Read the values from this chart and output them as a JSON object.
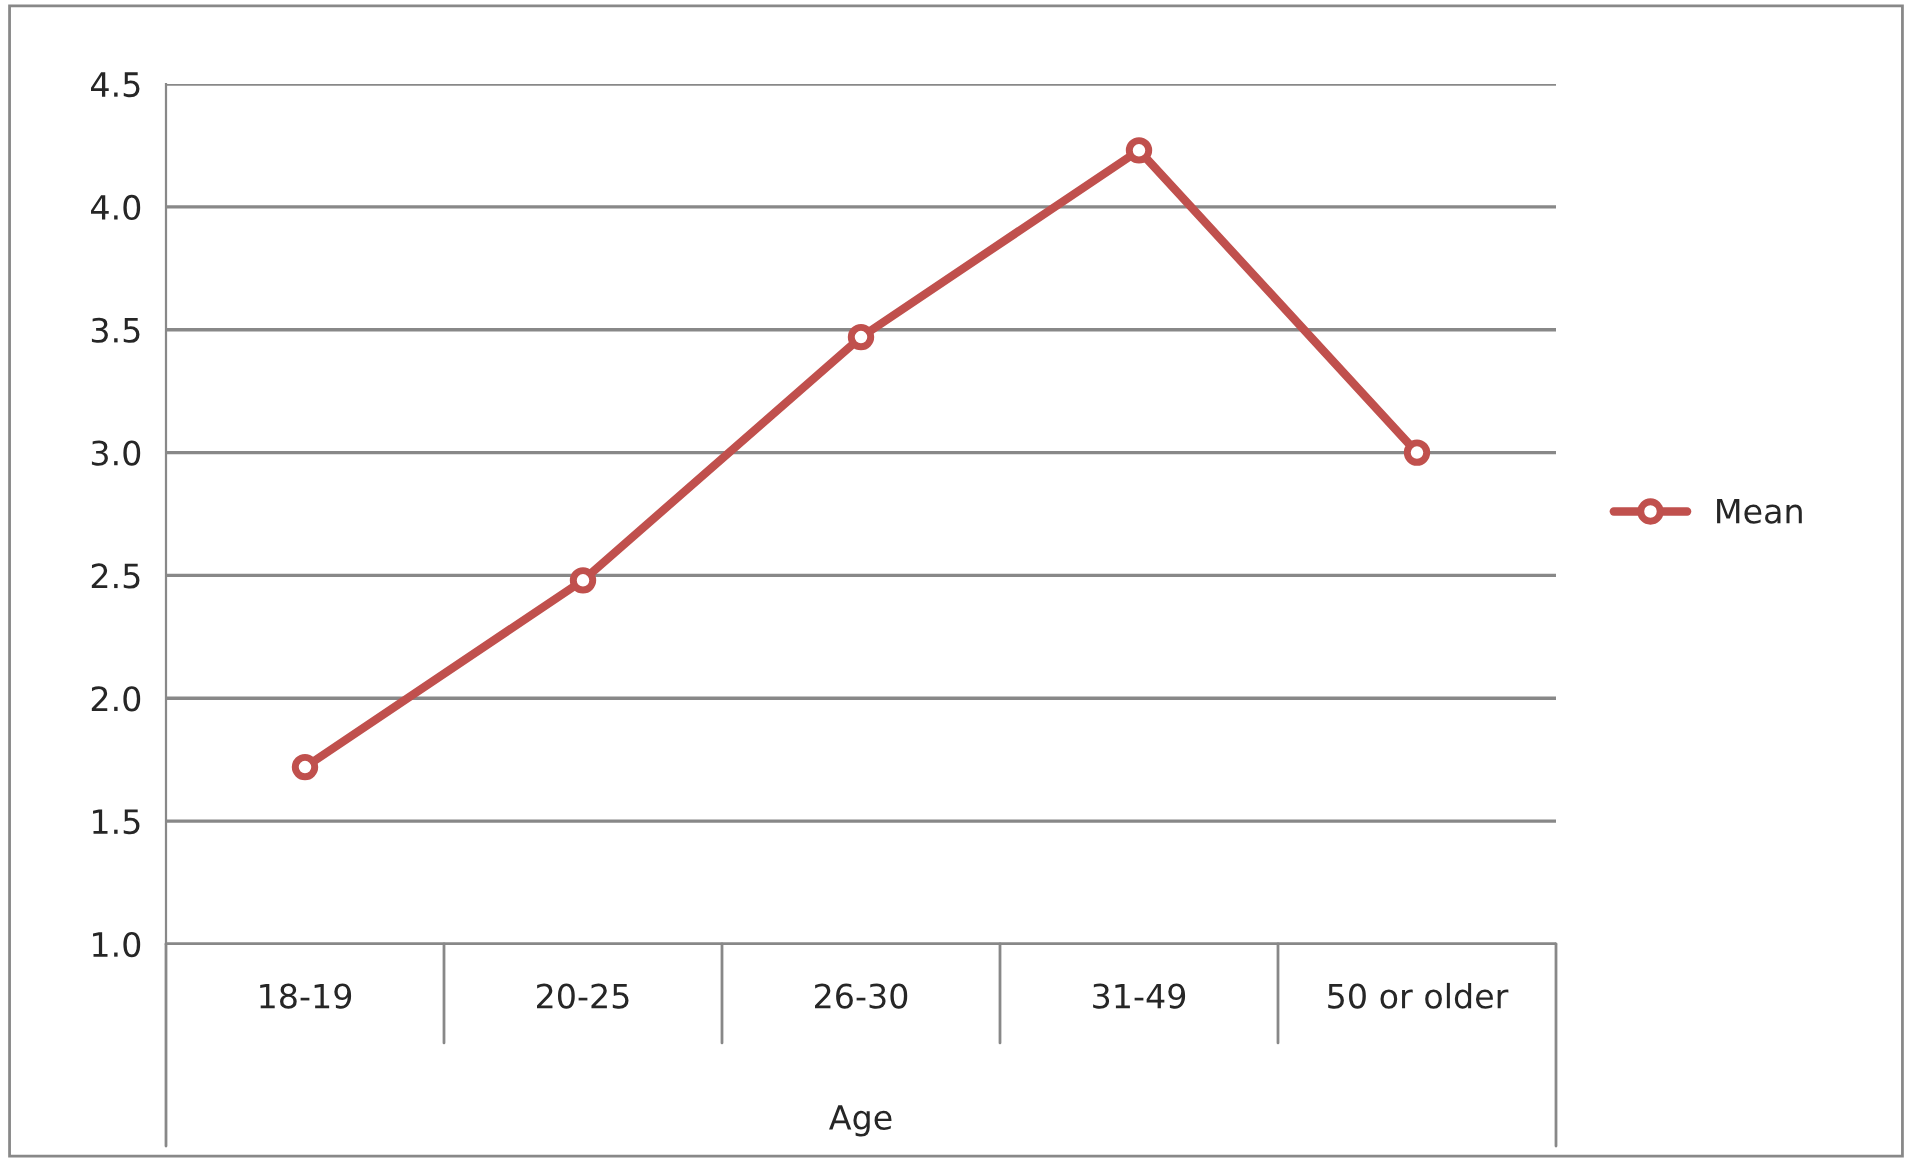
{
  "chart_data": {
    "type": "line",
    "xlabel": "Age",
    "categories": [
      "18-19",
      "20-25",
      "26-30",
      "31-49",
      "50 or older"
    ],
    "series": [
      {
        "name": "Mean",
        "color": "#c0504d",
        "values": [
          1.72,
          2.48,
          3.47,
          4.23,
          3.0
        ]
      }
    ],
    "ylim": [
      1.0,
      4.5
    ],
    "yticks": [
      {
        "value": 1.0,
        "label": "1.0"
      },
      {
        "value": 1.5,
        "label": "1.5"
      },
      {
        "value": 2.0,
        "label": "2.0"
      },
      {
        "value": 2.5,
        "label": "2.5"
      },
      {
        "value": 3.0,
        "label": "3.0"
      },
      {
        "value": 3.5,
        "label": "3.5"
      },
      {
        "value": 4.0,
        "label": "4.0"
      },
      {
        "value": 4.5,
        "label": "4.5"
      }
    ],
    "grid": "y",
    "legend": "right",
    "marker": "circle",
    "line_style": "solid"
  }
}
